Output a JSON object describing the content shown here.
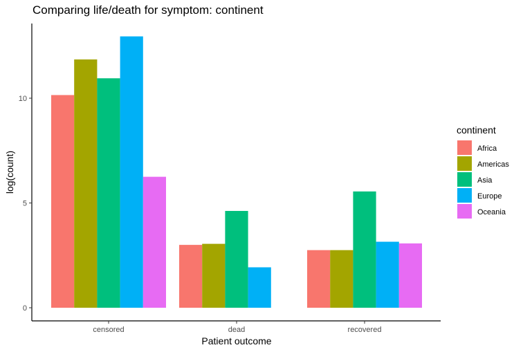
{
  "chart_data": {
    "type": "bar",
    "title": "Comparing life/death for symptom: continent",
    "xlabel": "Patient outcome",
    "ylabel": "log(count)",
    "categories": [
      "censored",
      "dead",
      "recovered"
    ],
    "ylim": [
      0,
      13.5
    ],
    "yticks": [
      0,
      5,
      10
    ],
    "grid": false,
    "legend": {
      "title": "continent",
      "position": "right"
    },
    "series": [
      {
        "name": "Africa",
        "color": "#F8766D",
        "values": [
          10.15,
          3.0,
          2.75
        ]
      },
      {
        "name": "Americas",
        "color": "#A3A500",
        "values": [
          11.85,
          3.05,
          2.75
        ]
      },
      {
        "name": "Asia",
        "color": "#00BF7D",
        "values": [
          10.95,
          4.62,
          5.55
        ]
      },
      {
        "name": "Europe",
        "color": "#00B0F6",
        "values": [
          12.95,
          1.93,
          3.15
        ]
      },
      {
        "name": "Oceania",
        "color": "#E76BF3",
        "values": [
          6.25,
          null,
          3.07
        ]
      }
    ]
  }
}
